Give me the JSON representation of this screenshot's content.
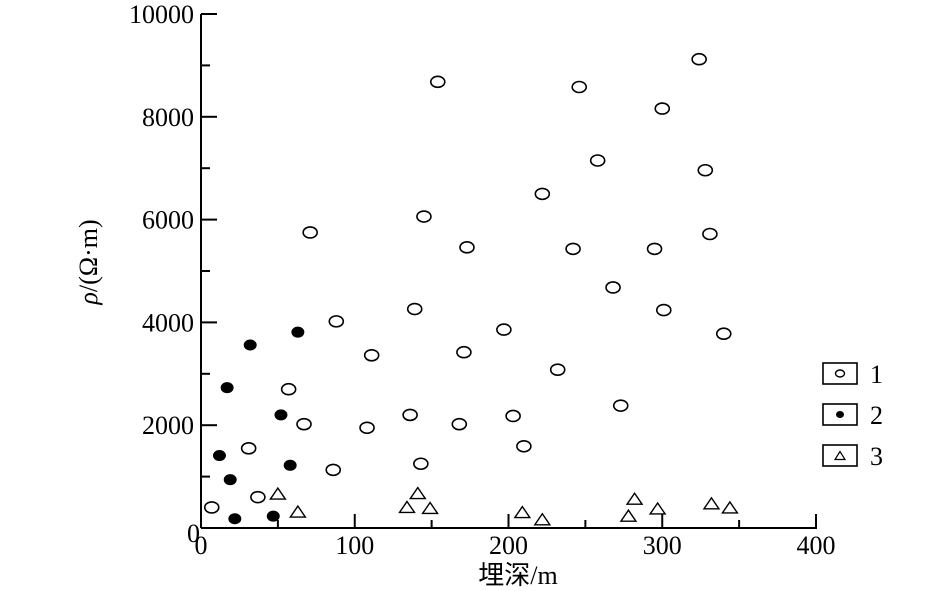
{
  "chart_data": {
    "type": "scatter",
    "title": "",
    "xlabel": "埋深/m",
    "ylabel_symbol": "ρ",
    "ylabel_unit": "/(Ω·m)",
    "xlim": [
      0,
      400
    ],
    "ylim": [
      0,
      10000
    ],
    "x_ticks": [
      0,
      100,
      200,
      300,
      400
    ],
    "x_tick_labels": [
      "0",
      "100",
      "200",
      "300",
      "400"
    ],
    "y_ticks": [
      0,
      2000,
      4000,
      6000,
      8000,
      10000
    ],
    "y_tick_labels": [
      "0",
      "2000",
      "4000",
      "6000",
      "8000",
      "10000"
    ],
    "grid": false,
    "legend_position": "right",
    "series": [
      {
        "name": "1",
        "marker": "open-circle",
        "points": [
          [
            7,
            400
          ],
          [
            37,
            600
          ],
          [
            31,
            1550
          ],
          [
            57,
            2700
          ],
          [
            67,
            2020
          ],
          [
            71,
            5750
          ],
          [
            86,
            1130
          ],
          [
            88,
            4020
          ],
          [
            108,
            1950
          ],
          [
            111,
            3360
          ],
          [
            136,
            2200
          ],
          [
            139,
            4260
          ],
          [
            143,
            1250
          ],
          [
            145,
            6060
          ],
          [
            154,
            8680
          ],
          [
            168,
            2020
          ],
          [
            171,
            3420
          ],
          [
            173,
            5460
          ],
          [
            197,
            3860
          ],
          [
            203,
            2180
          ],
          [
            210,
            1590
          ],
          [
            222,
            6500
          ],
          [
            232,
            3080
          ],
          [
            242,
            5430
          ],
          [
            246,
            8580
          ],
          [
            258,
            7150
          ],
          [
            268,
            4680
          ],
          [
            273,
            2380
          ],
          [
            295,
            5430
          ],
          [
            300,
            8160
          ],
          [
            301,
            4240
          ],
          [
            324,
            9120
          ],
          [
            328,
            6960
          ],
          [
            331,
            5720
          ],
          [
            340,
            3780
          ]
        ]
      },
      {
        "name": "2",
        "marker": "filled-circle",
        "points": [
          [
            12,
            1410
          ],
          [
            17,
            2730
          ],
          [
            19,
            940
          ],
          [
            22,
            180
          ],
          [
            32,
            3560
          ],
          [
            47,
            230
          ],
          [
            52,
            2200
          ],
          [
            58,
            1220
          ],
          [
            63,
            3810
          ]
        ]
      },
      {
        "name": "3",
        "marker": "open-triangle",
        "points": [
          [
            50,
            660
          ],
          [
            63,
            310
          ],
          [
            134,
            400
          ],
          [
            141,
            670
          ],
          [
            149,
            380
          ],
          [
            209,
            300
          ],
          [
            222,
            160
          ],
          [
            278,
            230
          ],
          [
            282,
            560
          ],
          [
            297,
            370
          ],
          [
            332,
            470
          ],
          [
            344,
            390
          ]
        ]
      }
    ]
  }
}
